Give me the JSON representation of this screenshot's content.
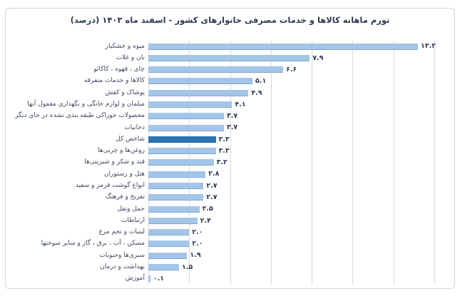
{
  "chart_data": {
    "type": "bar",
    "orientation": "horizontal",
    "title": "تورم ماهانه کالاها و خدمات مصرفی خانوارهای کشور - اسفند ماه ۱۴۰۳ (درصد)",
    "categories": [
      "میوه و خشکبار",
      "نان و غلات",
      "چای ، قهوه ، کاکائو",
      "کالاها و خدمات متفرقه",
      "پوشاک و کفش",
      "مبلمان و لوازم خانگی و نگهداری معمول آنها",
      "محصولات خوراکی طبقه بندی نشده در جای دیگر",
      "دخانیات",
      "شاخص کل",
      "روغن‌ها و چربی‌ها",
      "قند و شکر و شیرینی‌ها",
      "هتل و رستوران",
      "انواع گوشت قرمز و سفید",
      "تفریح و فرهنگ",
      "حمل ونقل",
      "ارتباطات",
      "لبنیات و تخم مرغ",
      "مسکن ، آب ، برق ، گاز و سایر سوختها",
      "سبزی‌ها وحبوبات",
      "بهداشت و درمان",
      "آموزش"
    ],
    "values": [
      13.2,
      7.9,
      6.6,
      5.1,
      4.9,
      4.1,
      3.7,
      3.7,
      3.3,
      3.3,
      3.2,
      2.8,
      2.7,
      2.7,
      2.5,
      2.4,
      2.0,
      2.0,
      1.9,
      1.5,
      0.1
    ],
    "value_labels": [
      "۱۳.۲",
      "۷.۹",
      "۶.۶",
      "۵.۱",
      "۴.۹",
      "۴.۱",
      "۳.۷",
      "۳.۷",
      "۳.۳",
      "۳.۳",
      "۳.۲",
      "۲.۸",
      "۲.۷",
      "۲.۷",
      "۲.۵",
      "۲.۴",
      "۲.۰",
      "۲.۰",
      "۱.۹",
      "۱.۵",
      "۰.۱"
    ],
    "highlight_category": "شاخص کل",
    "highlight_index": 8,
    "xlabel": "",
    "ylabel": "",
    "xlim": [
      0,
      14.7
    ],
    "gridline_step": 2,
    "grid": true,
    "legend": false,
    "colors": {
      "bar": "#a3c6e8",
      "highlight_bar": "#2e74b5",
      "gridline": "#d9d9d9",
      "title_text": "#2c3a54",
      "category_text": "#3f4a5f",
      "value_text": "#2c3a54",
      "frame_border": "#d4d4d4",
      "background": "#ffffff"
    }
  }
}
